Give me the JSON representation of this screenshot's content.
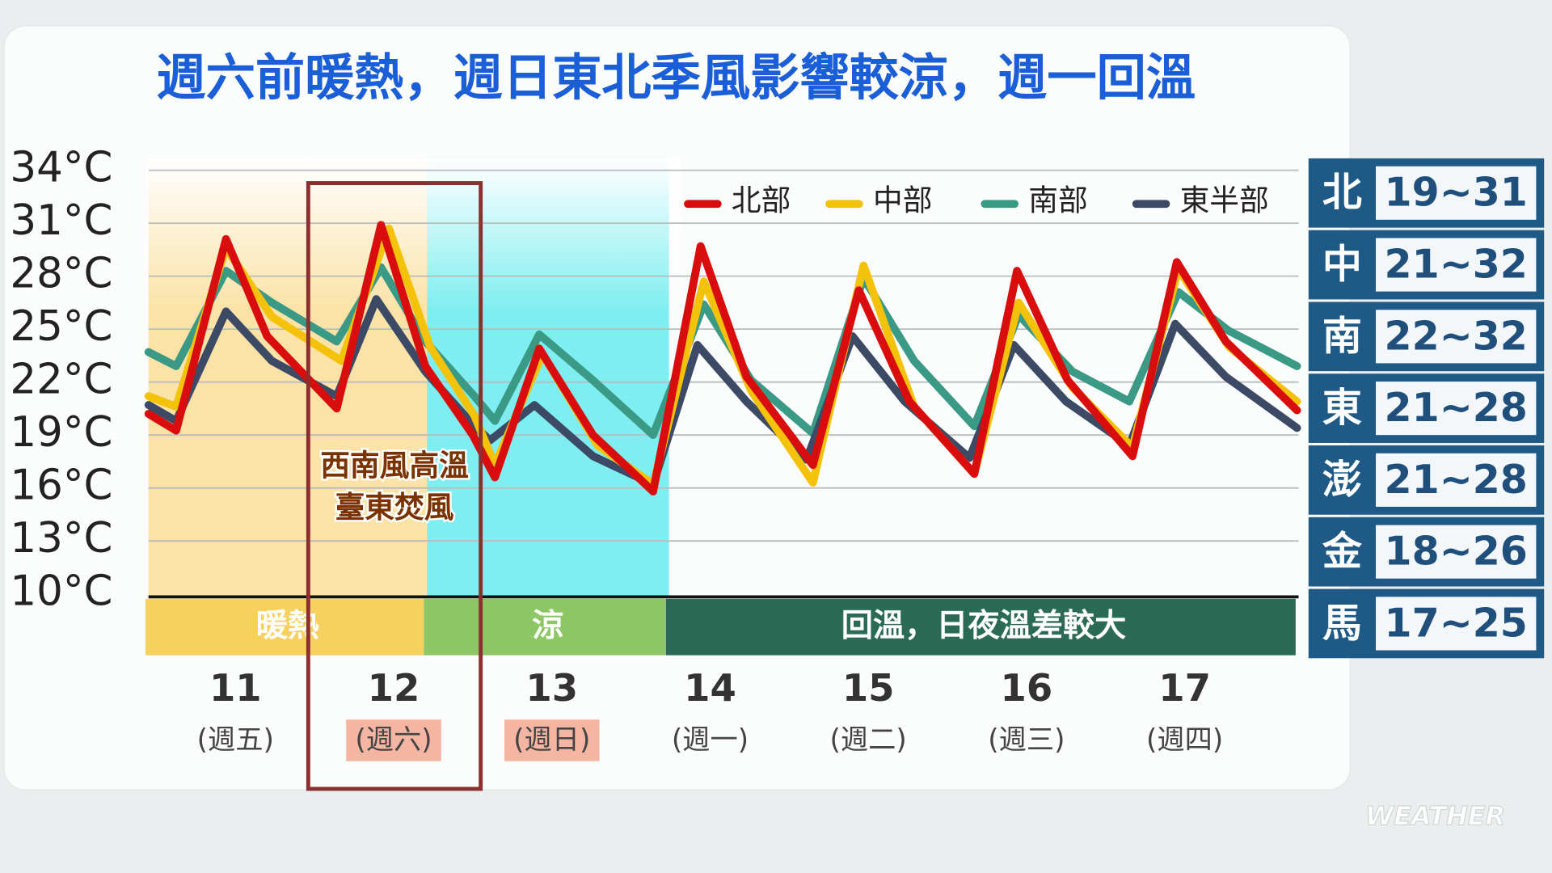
{
  "chart_data": {
    "type": "line",
    "title": "週六前暖熱，週日東北季風影響較涼，週一回溫",
    "xlim": [
      10.45,
      17.72
    ],
    "xticks": [
      11,
      12,
      13,
      14,
      15,
      16,
      17
    ],
    "weekdays": [
      {
        "label": "(週五)",
        "highlight": false
      },
      {
        "label": "(週六)",
        "highlight": true
      },
      {
        "label": "(週日)",
        "highlight": true
      },
      {
        "label": "(週一)",
        "highlight": false
      },
      {
        "label": "(週二)",
        "highlight": false
      },
      {
        "label": "(週三)",
        "highlight": false
      },
      {
        "label": "(週四)",
        "highlight": false
      }
    ],
    "ylim": [
      10,
      34
    ],
    "yticks": [
      {
        "value": 10,
        "label": "10°C"
      },
      {
        "value": 13,
        "label": "13°C"
      },
      {
        "value": 16,
        "label": "16°C"
      },
      {
        "value": 19,
        "label": "19°C"
      },
      {
        "value": 22,
        "label": "22°C"
      },
      {
        "value": 25,
        "label": "25°C"
      },
      {
        "value": 28,
        "label": "28°C"
      },
      {
        "value": 31,
        "label": "31°C"
      },
      {
        "value": 34,
        "label": "34°C"
      }
    ],
    "grid": true,
    "series": [
      {
        "name": "北部",
        "color": "#d90d0d",
        "x": [
          10.45,
          10.625,
          10.94,
          11.2,
          11.64,
          11.92,
          12.2,
          12.5,
          12.64,
          12.92,
          13.26,
          13.64,
          13.94,
          14.23,
          14.65,
          14.94,
          15.26,
          15.67,
          15.94,
          16.26,
          16.67,
          16.95,
          17.26,
          17.71
        ],
        "values": [
          20.2,
          19.25,
          30.1,
          24.6,
          20.5,
          30.9,
          22.9,
          19.0,
          16.6,
          23.9,
          19.0,
          15.8,
          29.7,
          22.3,
          17.3,
          27.2,
          20.9,
          16.8,
          28.3,
          22.1,
          17.8,
          28.8,
          24.3,
          20.4
        ]
      },
      {
        "name": "中部",
        "color": "#f5c20a",
        "x": [
          10.45,
          10.625,
          10.94,
          11.23,
          11.67,
          11.97,
          12.23,
          12.51,
          12.64,
          12.94,
          13.29,
          13.64,
          13.96,
          14.26,
          14.65,
          14.97,
          15.29,
          15.67,
          15.95,
          16.29,
          16.67,
          16.96,
          17.28,
          17.71
        ],
        "values": [
          21.2,
          20.6,
          29.6,
          25.7,
          23.2,
          30.7,
          24.0,
          20.1,
          17.3,
          23.6,
          18.4,
          16.2,
          27.7,
          21.5,
          16.3,
          28.6,
          20.6,
          16.8,
          26.5,
          21.7,
          18.3,
          28.4,
          24.0,
          20.9
        ]
      },
      {
        "name": "南部",
        "color": "#3a9a86",
        "x": [
          10.45,
          10.625,
          10.94,
          11.23,
          11.64,
          11.92,
          12.2,
          12.51,
          12.64,
          12.92,
          13.26,
          13.64,
          13.96,
          14.26,
          14.65,
          14.97,
          15.29,
          15.67,
          15.95,
          16.29,
          16.65,
          16.96,
          17.28,
          17.71
        ],
        "values": [
          23.7,
          22.9,
          28.3,
          26.5,
          24.3,
          28.5,
          24.3,
          21.2,
          19.8,
          24.7,
          22.1,
          19.0,
          26.4,
          22.1,
          19.1,
          27.9,
          23.2,
          19.5,
          25.8,
          22.6,
          20.9,
          27.1,
          24.9,
          22.9
        ]
      },
      {
        "name": "東半部",
        "color": "#3d4a66",
        "x": [
          10.45,
          10.625,
          10.94,
          11.23,
          11.64,
          11.89,
          12.2,
          12.51,
          12.61,
          12.89,
          13.26,
          13.64,
          13.92,
          14.23,
          14.61,
          14.9,
          15.23,
          15.64,
          15.92,
          16.25,
          16.65,
          16.94,
          17.26,
          17.71
        ],
        "values": [
          20.7,
          19.8,
          26.0,
          23.2,
          21.2,
          26.7,
          22.6,
          19.5,
          18.7,
          20.7,
          17.8,
          16.2,
          24.1,
          20.9,
          17.6,
          24.6,
          20.9,
          17.7,
          24.1,
          20.9,
          18.4,
          25.3,
          22.3,
          19.4
        ]
      }
    ],
    "periods": [
      {
        "label": "暖熱",
        "start": 10.45,
        "end": 12.21,
        "color": "#f6d15e",
        "shade": "#fbe2a6"
      },
      {
        "label": "涼",
        "start": 12.21,
        "end": 13.74,
        "color": "#8cc665",
        "shade": "#7eeef0"
      },
      {
        "label": "回溫，日夜溫差較大",
        "start": 13.74,
        "end": 17.72,
        "color": "#2b6a55"
      }
    ],
    "highlight_box": {
      "start": 11.46,
      "end": 12.55,
      "color": "#8b2f2f",
      "note": [
        "西南風高溫",
        "臺東焚風"
      ]
    },
    "range_panel": [
      {
        "region": "北",
        "range": "19~31"
      },
      {
        "region": "中",
        "range": "21~32"
      },
      {
        "region": "南",
        "range": "22~32"
      },
      {
        "region": "東",
        "range": "21~28"
      },
      {
        "region": "澎",
        "range": "21~28"
      },
      {
        "region": "金",
        "range": "18~26"
      },
      {
        "region": "馬",
        "range": "17~25"
      }
    ],
    "watermark": "WEATHER"
  }
}
